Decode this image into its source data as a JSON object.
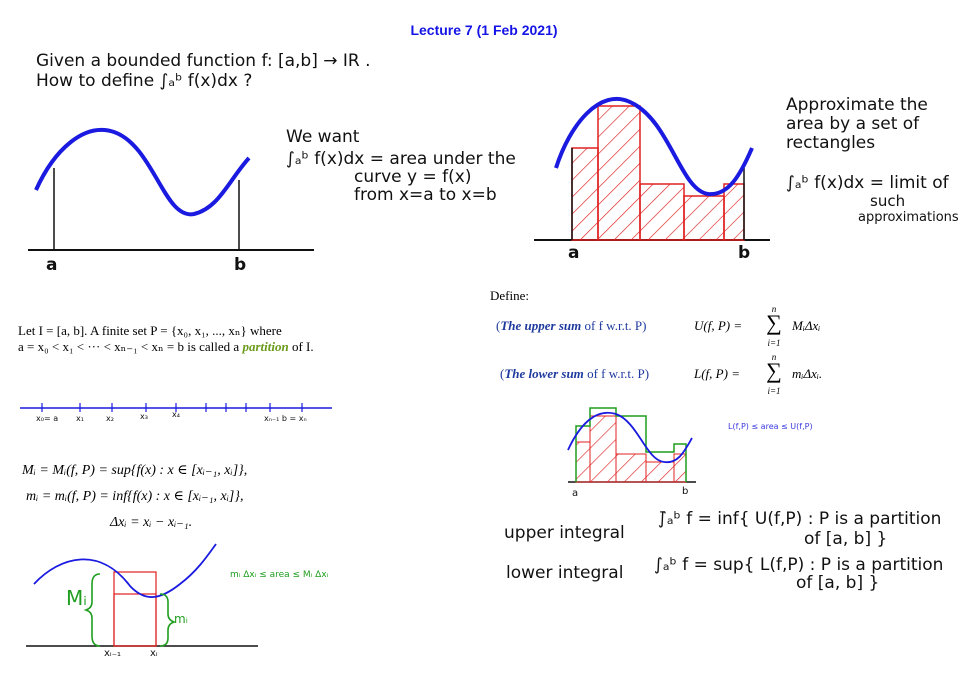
{
  "title": "Lecture 7 (1 Feb 2021)",
  "intro": {
    "line1": "Given a bounded function f: [a,b] → IR .",
    "line2": "How to define ∫ₐᵇ f(x)dx ?"
  },
  "we_want": {
    "line1": "We want",
    "line2": "∫ₐᵇ f(x)dx = area under the",
    "line3": "curve  y = f(x)",
    "line4": "from x=a to x=b"
  },
  "graph1": {
    "a": "a",
    "b": "b"
  },
  "approx": {
    "line1": "Approximate the",
    "line2": "area by a set of",
    "line3": "rectangles",
    "line4": "∫ₐᵇ f(x)dx = limit of",
    "line5": "such",
    "line6": "approximations"
  },
  "graph2": {
    "a": "a",
    "b": "b"
  },
  "define": "Define:",
  "upper_sum": {
    "open": "(",
    "name": "The upper sum",
    "rest": " of f w.r.t. P)",
    "formula_lhs": "U(f, P) =",
    "sum_top": "n",
    "sum_bottom": "i=1",
    "formula_rhs": "MᵢΔxᵢ"
  },
  "lower_sum": {
    "open": "(",
    "name": "The lower sum",
    "rest": " of f w.r.t. P)",
    "formula_lhs": "L(f, P) =",
    "sum_top": "n",
    "sum_bottom": "i=1",
    "formula_rhs": "mᵢΔxᵢ."
  },
  "partition_def": {
    "line1": "Let I = [a, b]. A finite set P = {x₀, x₁, ..., xₙ} where",
    "line2a": "a = x₀ < x₁ < ··· < xₙ₋₁ < xₙ = b is called a ",
    "word": "partition",
    "line2b": " of I."
  },
  "numberline": {
    "x0": "x₀= a",
    "x1": "x₁",
    "x2": "x₂",
    "x3": "x₃",
    "x4": "x₄",
    "xn": "xₙ₋₁ b = xₙ"
  },
  "defs": {
    "M": "Mᵢ = Mᵢ(f, P) = sup{f(x) :  x ∈ [xᵢ₋₁, xᵢ]},",
    "m": "mᵢ = mᵢ(f, P) = inf{f(x) :  x ∈ [xᵢ₋₁, xᵢ]},",
    "dx": "Δxᵢ = xᵢ − xᵢ₋₁."
  },
  "ineq_note": "mᵢ Δxᵢ ≤ area ≤ Mᵢ Δxᵢ",
  "graph3": {
    "Mi": "Mᵢ",
    "mi": "mᵢ",
    "xim1": "xᵢ₋₁",
    "xi": "xᵢ"
  },
  "small_note": "L(f,P) ≤ area ≤ U(f,P)",
  "graph4": {
    "a": "a",
    "b": "b"
  },
  "upper_integral": {
    "label": "upper integral",
    "formula1": "∫̄ₐᵇ f = inf{ U(f,P) : P is a partition",
    "formula2": "of [a, b] }"
  },
  "lower_integral": {
    "label": "lower integral",
    "formula1": "∫ₐᵇ f  = sup{ L(f,P) : P is a partition",
    "formula2": "of [a, b] }"
  },
  "colors": {
    "title": "#1414e6",
    "curve": "#1a1ae0",
    "rect_red": "#e02020",
    "green": "#1f9e1f",
    "label_blue": "#1e3a9e"
  }
}
